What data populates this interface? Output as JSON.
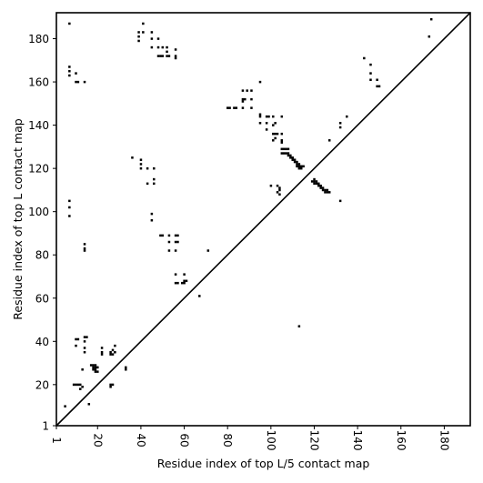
{
  "chart_data": {
    "type": "scatter",
    "xlabel": "Residue index of top L/5 contact map",
    "ylabel": "Residue index of top L contact map",
    "xlim": [
      1,
      192
    ],
    "ylim": [
      1,
      192
    ],
    "x_ticks": [
      1,
      20,
      40,
      60,
      80,
      100,
      120,
      140,
      160,
      180
    ],
    "y_ticks": [
      1,
      20,
      40,
      60,
      80,
      100,
      120,
      140,
      160,
      180
    ],
    "diagonal": true,
    "marker": "square",
    "color": "#000000",
    "series": [
      {
        "points": [
          [
            7,
            187
          ],
          [
            7,
            167
          ],
          [
            7,
            165
          ],
          [
            7,
            163
          ],
          [
            7,
            105
          ],
          [
            7,
            102
          ],
          [
            7,
            98
          ],
          [
            10,
            164
          ],
          [
            10,
            160
          ],
          [
            11,
            160
          ],
          [
            14,
            160
          ],
          [
            5,
            10
          ],
          [
            9,
            20
          ],
          [
            10,
            20
          ],
          [
            11,
            20
          ],
          [
            12,
            20
          ],
          [
            12,
            18
          ],
          [
            13,
            19
          ],
          [
            13,
            27
          ],
          [
            10,
            41
          ],
          [
            10,
            38
          ],
          [
            11,
            41
          ],
          [
            14,
            42
          ],
          [
            14,
            40
          ],
          [
            15,
            42
          ],
          [
            14,
            37
          ],
          [
            14,
            35
          ],
          [
            14,
            85
          ],
          [
            14,
            83
          ],
          [
            14,
            82
          ],
          [
            16,
            11
          ],
          [
            17,
            29
          ],
          [
            18,
            29
          ],
          [
            19,
            29
          ],
          [
            18,
            28
          ],
          [
            19,
            28
          ],
          [
            20,
            28
          ],
          [
            18,
            27
          ],
          [
            19,
            27
          ],
          [
            19,
            26
          ],
          [
            20,
            26
          ],
          [
            22,
            37
          ],
          [
            22,
            35
          ],
          [
            22,
            34
          ],
          [
            26,
            20
          ],
          [
            26,
            19
          ],
          [
            27,
            20
          ],
          [
            26,
            35
          ],
          [
            26,
            34
          ],
          [
            27,
            36
          ],
          [
            27,
            34
          ],
          [
            28,
            35
          ],
          [
            28,
            38
          ],
          [
            33,
            28
          ],
          [
            33,
            27
          ],
          [
            36,
            125
          ],
          [
            39,
            183
          ],
          [
            39,
            181
          ],
          [
            39,
            179
          ],
          [
            40,
            124
          ],
          [
            40,
            122
          ],
          [
            41,
            187
          ],
          [
            41,
            183
          ],
          [
            40,
            120
          ],
          [
            43,
            120
          ],
          [
            43,
            113
          ],
          [
            45,
            183
          ],
          [
            45,
            180
          ],
          [
            45,
            176
          ],
          [
            46,
            115
          ],
          [
            46,
            113
          ],
          [
            46,
            120
          ],
          [
            45,
            99
          ],
          [
            45,
            96
          ],
          [
            48,
            180
          ],
          [
            48,
            172
          ],
          [
            48,
            176
          ],
          [
            49,
            172
          ],
          [
            50,
            176
          ],
          [
            50,
            172
          ],
          [
            50,
            89
          ],
          [
            49,
            89
          ],
          [
            52,
            176
          ],
          [
            52,
            174
          ],
          [
            52,
            172
          ],
          [
            53,
            172
          ],
          [
            53,
            89
          ],
          [
            53,
            86
          ],
          [
            53,
            82
          ],
          [
            56,
            175
          ],
          [
            56,
            172
          ],
          [
            56,
            171
          ],
          [
            56,
            89
          ],
          [
            57,
            89
          ],
          [
            56,
            86
          ],
          [
            57,
            86
          ],
          [
            56,
            82
          ],
          [
            56,
            71
          ],
          [
            56,
            67
          ],
          [
            57,
            67
          ],
          [
            59,
            67
          ],
          [
            60,
            68
          ],
          [
            61,
            68
          ],
          [
            60,
            71
          ],
          [
            60,
            67
          ],
          [
            67,
            61
          ],
          [
            71,
            82
          ],
          [
            80,
            148
          ],
          [
            81,
            148
          ],
          [
            83,
            148
          ],
          [
            84,
            148
          ],
          [
            87,
            156
          ],
          [
            87,
            152
          ],
          [
            87,
            151
          ],
          [
            87,
            148
          ],
          [
            88,
            152
          ],
          [
            89,
            156
          ],
          [
            91,
            156
          ],
          [
            91,
            152
          ],
          [
            91,
            148
          ],
          [
            95,
            160
          ],
          [
            95,
            145
          ],
          [
            95,
            144
          ],
          [
            95,
            141
          ],
          [
            98,
            144
          ],
          [
            98,
            141
          ],
          [
            98,
            138
          ],
          [
            99,
            144
          ],
          [
            100,
            112
          ],
          [
            101,
            144
          ],
          [
            101,
            140
          ],
          [
            101,
            136
          ],
          [
            102,
            136
          ],
          [
            101,
            133
          ],
          [
            102,
            134
          ],
          [
            103,
            136
          ],
          [
            102,
            141
          ],
          [
            103,
            112
          ],
          [
            104,
            111
          ],
          [
            104,
            110
          ],
          [
            103,
            109
          ],
          [
            104,
            108
          ],
          [
            105,
            144
          ],
          [
            105,
            136
          ],
          [
            105,
            133
          ],
          [
            105,
            132
          ],
          [
            105,
            129
          ],
          [
            106,
            129
          ],
          [
            107,
            129
          ],
          [
            108,
            129
          ],
          [
            105,
            127
          ],
          [
            106,
            127
          ],
          [
            107,
            127
          ],
          [
            108,
            127
          ],
          [
            108,
            126
          ],
          [
            109,
            126
          ],
          [
            109,
            125
          ],
          [
            110,
            125
          ],
          [
            110,
            124
          ],
          [
            111,
            124
          ],
          [
            111,
            123
          ],
          [
            112,
            123
          ],
          [
            112,
            122
          ],
          [
            113,
            122
          ],
          [
            113,
            121
          ],
          [
            114,
            121
          ],
          [
            113,
            120
          ],
          [
            114,
            120
          ],
          [
            115,
            121
          ],
          [
            112,
            121
          ],
          [
            113,
            47
          ],
          [
            119,
            114
          ],
          [
            120,
            115
          ],
          [
            120,
            114
          ],
          [
            120,
            113
          ],
          [
            121,
            114
          ],
          [
            121,
            113
          ],
          [
            122,
            113
          ],
          [
            122,
            112
          ],
          [
            123,
            112
          ],
          [
            123,
            111
          ],
          [
            124,
            111
          ],
          [
            124,
            110
          ],
          [
            125,
            110
          ],
          [
            125,
            109
          ],
          [
            126,
            110
          ],
          [
            126,
            109
          ],
          [
            127,
            109
          ],
          [
            127,
            133
          ],
          [
            132,
            141
          ],
          [
            132,
            139
          ],
          [
            132,
            105
          ],
          [
            135,
            144
          ],
          [
            143,
            171
          ],
          [
            146,
            168
          ],
          [
            146,
            164
          ],
          [
            146,
            161
          ],
          [
            149,
            161
          ],
          [
            149,
            158
          ],
          [
            150,
            158
          ],
          [
            173,
            181
          ],
          [
            174,
            189
          ]
        ]
      }
    ]
  }
}
